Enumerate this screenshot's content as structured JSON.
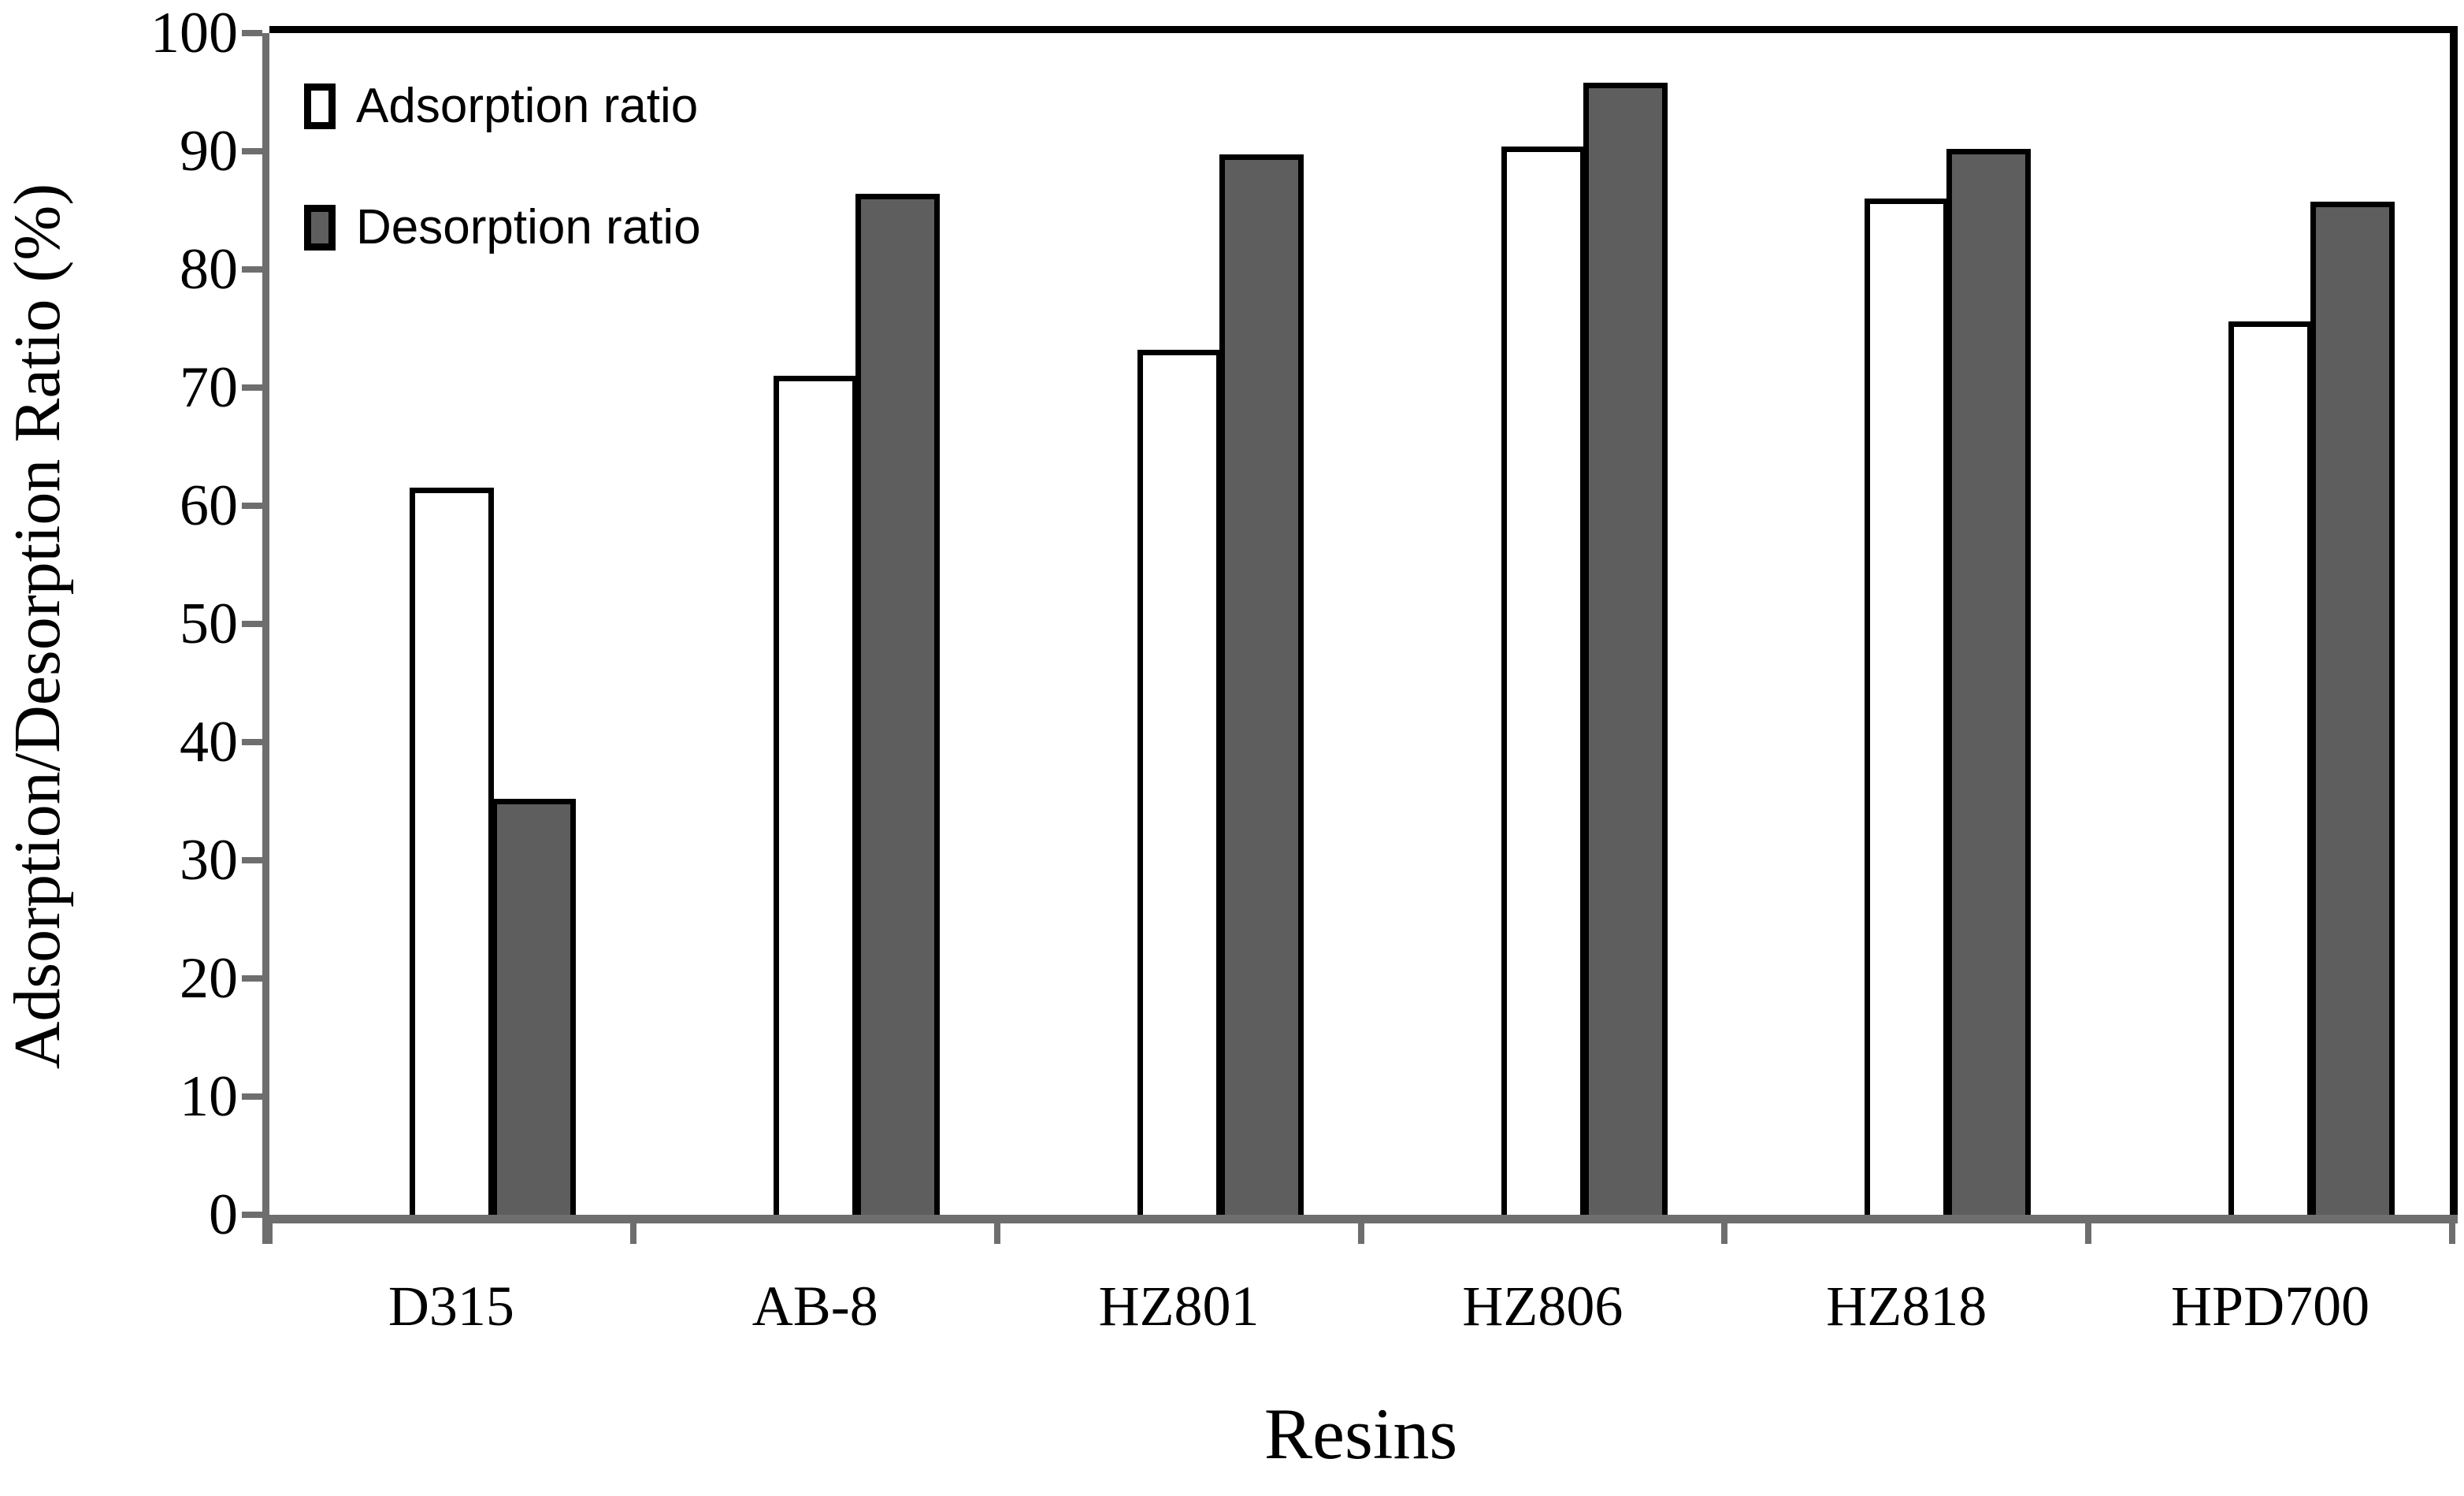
{
  "chart_data": {
    "type": "bar",
    "title": "",
    "xlabel": "Resins",
    "ylabel": "Adsorption/Desorption Ratio (%)",
    "categories": [
      "D315",
      "AB-8",
      "HZ801",
      "HZ806",
      "HZ818",
      "HPD700"
    ],
    "series": [
      {
        "name": "Adsorption ratio",
        "color": "#ffffff",
        "values": [
          61.5,
          71.0,
          73.2,
          90.4,
          86.0,
          75.6
        ]
      },
      {
        "name": "Desorption ratio",
        "color": "#5e5e5e",
        "values": [
          35.2,
          86.4,
          89.7,
          95.8,
          90.2,
          85.7
        ]
      }
    ],
    "ylim": [
      0,
      100
    ],
    "yticks": [
      0,
      10,
      20,
      30,
      40,
      50,
      60,
      70,
      80,
      90,
      100
    ],
    "grid": false,
    "legend_position": "top-left-inside",
    "bar_outline_color": "#000000",
    "axis_color": "#6e6e6e",
    "background_color": "#ffffff"
  }
}
